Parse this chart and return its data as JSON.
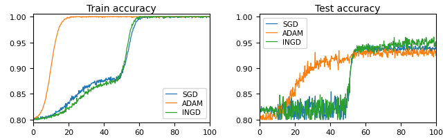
{
  "title_left": "Train accuracy",
  "title_right": "Test accuracy",
  "xlim": [
    0,
    100
  ],
  "ylim": [
    0.795,
    1.005
  ],
  "yticks": [
    0.8,
    0.85,
    0.9,
    0.95,
    1.0
  ],
  "xticks": [
    0,
    20,
    40,
    60,
    80,
    100
  ],
  "colors": {
    "SGD": "#1f77b4",
    "ADAM": "#ff7f0e",
    "INGD": "#2ca02c"
  },
  "legend_labels": [
    "SGD",
    "ADAM",
    "INGD"
  ],
  "seed": 7
}
